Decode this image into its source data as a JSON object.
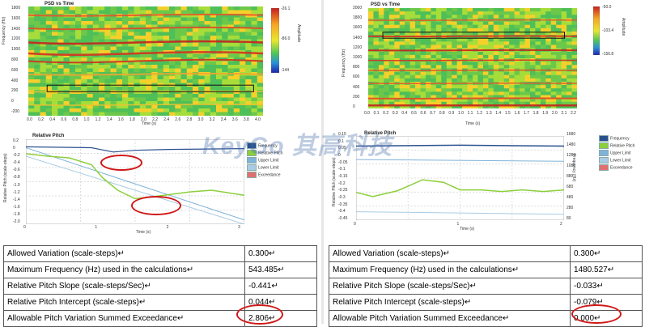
{
  "left": {
    "heatmap": {
      "title": "PSD vs Time",
      "y_label": "Frequency (Hz)",
      "x_label": "Time (s)",
      "y_ticks": [
        "1800",
        "1600",
        "1400",
        "1200",
        "1000",
        "800",
        "600",
        "400",
        "200",
        "0",
        "-200"
      ],
      "x_ticks": [
        "0.0",
        "0.2",
        "0.4",
        "0.6",
        "0.8",
        "1.0",
        "1.2",
        "1.4",
        "1.6",
        "1.8",
        "2.0",
        "2.2",
        "2.4",
        "2.6",
        "2.8",
        "3.0",
        "3.2",
        "3.4",
        "3.6",
        "3.8",
        "4.0"
      ],
      "colorbar_ticks": [
        "-26.1",
        "-86.0",
        "-144"
      ],
      "colorbar_label": "Amplitude"
    },
    "pitch": {
      "title": "Relative Pitch",
      "y_label": "Relative Pitch (scale-steps)",
      "x_label": "Time (s)",
      "y_ticks": [
        "0.2",
        "0",
        "-0.2",
        "-0.4",
        "-0.6",
        "-0.8",
        "-1.0",
        "-1.2",
        "-1.4",
        "-1.6",
        "-1.8",
        "-2.0"
      ],
      "x_ticks": [
        "0",
        "1",
        "2",
        "3"
      ],
      "legend": [
        "Frequency",
        "Relative Pitch",
        "Upper Limit",
        "Lower Limit",
        "Exceedance"
      ]
    },
    "table": [
      {
        "label": "Allowed Variation (scale-steps)",
        "value": "0.300"
      },
      {
        "label": "Maximum Frequency (Hz) used in the calculations",
        "value": "543.485"
      },
      {
        "label": "Relative Pitch Slope (scale-steps/Sec)",
        "value": "-0.441"
      },
      {
        "label": "Relative Pitch Intercept (scale-steps)",
        "value": "0.044"
      },
      {
        "label": "Allowable Pitch Variation Summed Exceedance",
        "value": "2.806"
      }
    ]
  },
  "right": {
    "heatmap": {
      "title": "PSD vs Time",
      "y_label": "Frequency (Hz)",
      "x_label": "Time (s)",
      "y_ticks": [
        "2000",
        "1800",
        "1600",
        "1400",
        "1200",
        "1000",
        "800",
        "600",
        "400",
        "200",
        "0"
      ],
      "x_ticks": [
        "0.0",
        "0.1",
        "0.2",
        "0.3",
        "0.4",
        "0.5",
        "0.6",
        "0.7",
        "0.8",
        "0.9",
        "1.0",
        "1.1",
        "1.2",
        "1.3",
        "1.4",
        "1.5",
        "1.6",
        "1.7",
        "1.8",
        "1.9",
        "2.0",
        "2.1",
        "2.2"
      ],
      "colorbar_ticks": [
        "-50.0",
        "-103.4",
        "-156.8"
      ],
      "colorbar_label": "Amplitude"
    },
    "pitch": {
      "title": "Relative Pitch",
      "y_label": "Relative Pitch (scale-steps)",
      "y2_label": "Frequency (Hz)",
      "x_label": "Time (s)",
      "y_ticks": [
        "0.15",
        "0.1",
        "0.05",
        "0",
        "-0.05",
        "-0.1",
        "-0.15",
        "-0.2",
        "-0.25",
        "-0.3",
        "-0.35",
        "-0.4",
        "-0.45"
      ],
      "y2_ticks": [
        "1680",
        "1480",
        "1280",
        "1080",
        "880",
        "680",
        "480",
        "280",
        "80"
      ],
      "x_ticks": [
        "0",
        "1",
        "2"
      ],
      "legend": [
        "Frequency",
        "Relative Pitch",
        "Upper Limit",
        "Lower Limit",
        "Exceedance"
      ]
    },
    "table": [
      {
        "label": "Allowed Variation (scale-steps)",
        "value": "0.300"
      },
      {
        "label": "Maximum Frequency (Hz) used in the calculations",
        "value": "1480.527"
      },
      {
        "label": "Relative Pitch Slope (scale-steps/Sec)",
        "value": "-0.033"
      },
      {
        "label": "Relative Pitch Intercept (scale-steps)",
        "value": "-0.079"
      },
      {
        "label": "Allowable Pitch Variation Summed Exceedance",
        "value": "0.000"
      }
    ]
  },
  "watermark": "KeyGo 其高科技",
  "colors": {
    "highlight": "#d01818",
    "pitch_line": "#8ccf3c",
    "limit_line": "#7fb3d9",
    "frequency_line": "#2a4f8f"
  }
}
